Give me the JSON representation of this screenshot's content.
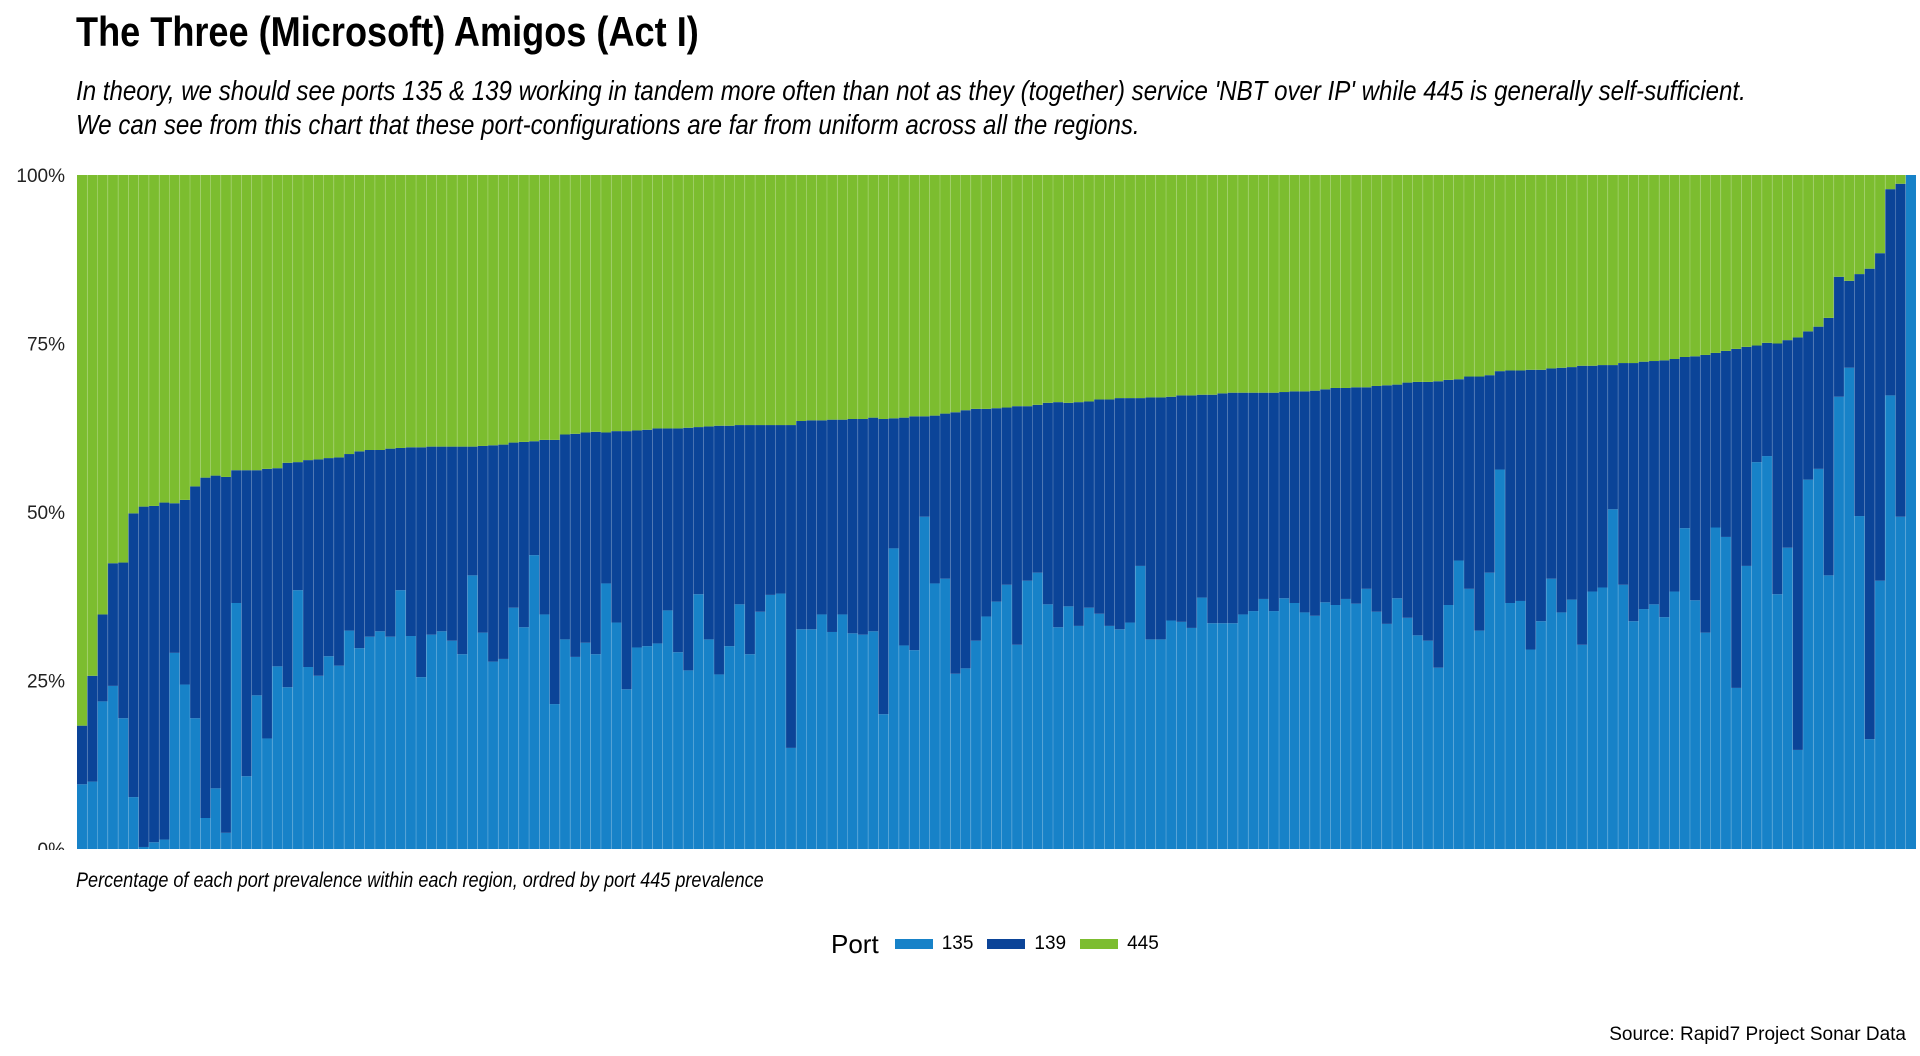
{
  "title": "The Three (Microsoft) Amigos (Act I)",
  "subtitle": "In theory, we should see ports 135 & 139 working in tandem more often than not as they (together) service 'NBT over IP' while 445 is generally self-sufficient. We can see from this chart that these port-configurations are far from uniform across all the regions.",
  "caption": "Percentage of each port prevalence within each region, ordred by port 445 prevalence",
  "source": "Source: Rapid7 Project Sonar Data",
  "colors": {
    "p135": "#1782c8",
    "p139": "#0b4498",
    "p445": "#7cbd2f"
  },
  "legend": {
    "title": "Port",
    "items": [
      {
        "label": "135",
        "color": "#1782c8"
      },
      {
        "label": "139",
        "color": "#0b4498"
      },
      {
        "label": "445",
        "color": "#7cbd2f"
      }
    ]
  },
  "chart_data": {
    "type": "bar",
    "stacked": true,
    "title": "The Three (Microsoft) Amigos (Act I)",
    "xlabel": "",
    "ylabel": "",
    "ylim": [
      0,
      100
    ],
    "y_ticks": [
      "0%",
      "25%",
      "50%",
      "75%",
      "100%"
    ],
    "grid": false,
    "legend_position": "bottom",
    "series_order_bottom_to_top": [
      "135",
      "139",
      "445"
    ],
    "port135": [
      9.6,
      10,
      21.9,
      24.2,
      19.4,
      7.7,
      0.3,
      1,
      1.4,
      29.1,
      24.4,
      19.4,
      4.6,
      9,
      2.4,
      36.5,
      10.8,
      22.8,
      16.4,
      27.1,
      24,
      38.4,
      27,
      25.7,
      28.6,
      27.2,
      32.4,
      29.8,
      31.5,
      32.3,
      31.5,
      38.4,
      31.6,
      25.5,
      31.8,
      32.3,
      30.9,
      28.9,
      40.6,
      32.1,
      27.8,
      28.2,
      35.8,
      32.9,
      43.6,
      34.8,
      21.5,
      31.1,
      28.5,
      30.6,
      28.9,
      39.4,
      33.6,
      23.7,
      29.9,
      30.1,
      30.5,
      35.4,
      29.2,
      26.5,
      37.8,
      31.1,
      25.9,
      30.1,
      36.3,
      28.9,
      35.2,
      37.7,
      37.9,
      15,
      32.6,
      32.6,
      34.8,
      32.2,
      34.8,
      32,
      31.8,
      32.3,
      20,
      44.6,
      30.2,
      29.5,
      49.3,
      39.4,
      40.1,
      26,
      26.8,
      30.9,
      34.5,
      36.7,
      39.2,
      30.3,
      39.8,
      41,
      36.3,
      32.9,
      36,
      33.1,
      35.8,
      34.9,
      33.1,
      32.6,
      33.6,
      42,
      31.1,
      31.1,
      33.9,
      33.7,
      32.8,
      37.3,
      33.5,
      33.5,
      33.5,
      34.8,
      35.3,
      37.1,
      35.3,
      37.2,
      36.5,
      35.1,
      34.6,
      36.6,
      36.2,
      37.1,
      36.4,
      38.6,
      35.2,
      33.4,
      37.2,
      34.3,
      31.7,
      30.9,
      26.9,
      36.2,
      42.8,
      38.6,
      32.4,
      41,
      56.3,
      36.5,
      36.8,
      29.6,
      33.8,
      40.1,
      35.1,
      37,
      30.3,
      38.2,
      38.8,
      50.4,
      39.2,
      33.8,
      35.6,
      36.3,
      34.4,
      38.2,
      47.6,
      36.9,
      32.1,
      47.7,
      46.3,
      23.9,
      42,
      57.4,
      58.3,
      37.8,
      44.7,
      14.7,
      54.8,
      56.4,
      40.6,
      67.1,
      71.4,
      49.4,
      16.3,
      39.8,
      67.3,
      49.3,
      100
    ],
    "port139": [
      8.7,
      15.7,
      12.9,
      18.2,
      23.1,
      42.1,
      50.5,
      49.9,
      50,
      22.2,
      27.4,
      34.4,
      50.5,
      46.4,
      52.8,
      19.7,
      45.4,
      33.4,
      40,
      29.4,
      33.3,
      19,
      30.7,
      32.1,
      29.4,
      30.9,
      26.2,
      29.2,
      27.7,
      26.9,
      27.9,
      21.1,
      28,
      34.1,
      27.9,
      27.4,
      28.8,
      30.8,
      19.1,
      27.7,
      32.1,
      31.8,
      24.5,
      27.5,
      16.9,
      25.9,
      39.2,
      30.4,
      33.1,
      31.2,
      33,
      22.4,
      28.4,
      38.3,
      32.2,
      32.1,
      31.9,
      27,
      33.2,
      36,
      24.8,
      31.6,
      36.9,
      32.7,
      26.6,
      34,
      27.7,
      25.2,
      25,
      47.9,
      30.9,
      31,
      28.8,
      31.5,
      28.9,
      31.8,
      32,
      31.7,
      43.8,
      19.3,
      33.8,
      34.7,
      14.9,
      24.9,
      24.5,
      38.8,
      38.3,
      34.4,
      30.8,
      28.7,
      26.3,
      35.4,
      25.9,
      24.9,
      29.9,
      33.4,
      30.2,
      33.2,
      30.6,
      31.8,
      33.6,
      34.3,
      33.3,
      24.9,
      35.9,
      35.9,
      33.2,
      33.6,
      34.5,
      30.1,
      33.9,
      34.1,
      34.2,
      32.9,
      32.4,
      30.6,
      32.4,
      30.6,
      31.4,
      32.8,
      33.4,
      31.6,
      32.2,
      31.3,
      32.1,
      29.9,
      33.5,
      35.4,
      31.7,
      34.9,
      37.6,
      38.4,
      42.5,
      33.4,
      26.9,
      31.5,
      37.7,
      29.3,
      14.6,
      34.5,
      34.2,
      41.5,
      37.3,
      31.2,
      36.3,
      34.5,
      41.4,
      33.5,
      33,
      21.4,
      32.9,
      38.3,
      36.7,
      36.1,
      38.1,
      34.5,
      25.4,
      36.2,
      41.2,
      25.9,
      27.6,
      50.3,
      32.5,
      17.3,
      16.8,
      37.2,
      30.8,
      61.2,
      22,
      21.1,
      38.2,
      17.8,
      12.9,
      35.9,
      69.8,
      48.6,
      30.6,
      49.4,
      0
    ]
  }
}
